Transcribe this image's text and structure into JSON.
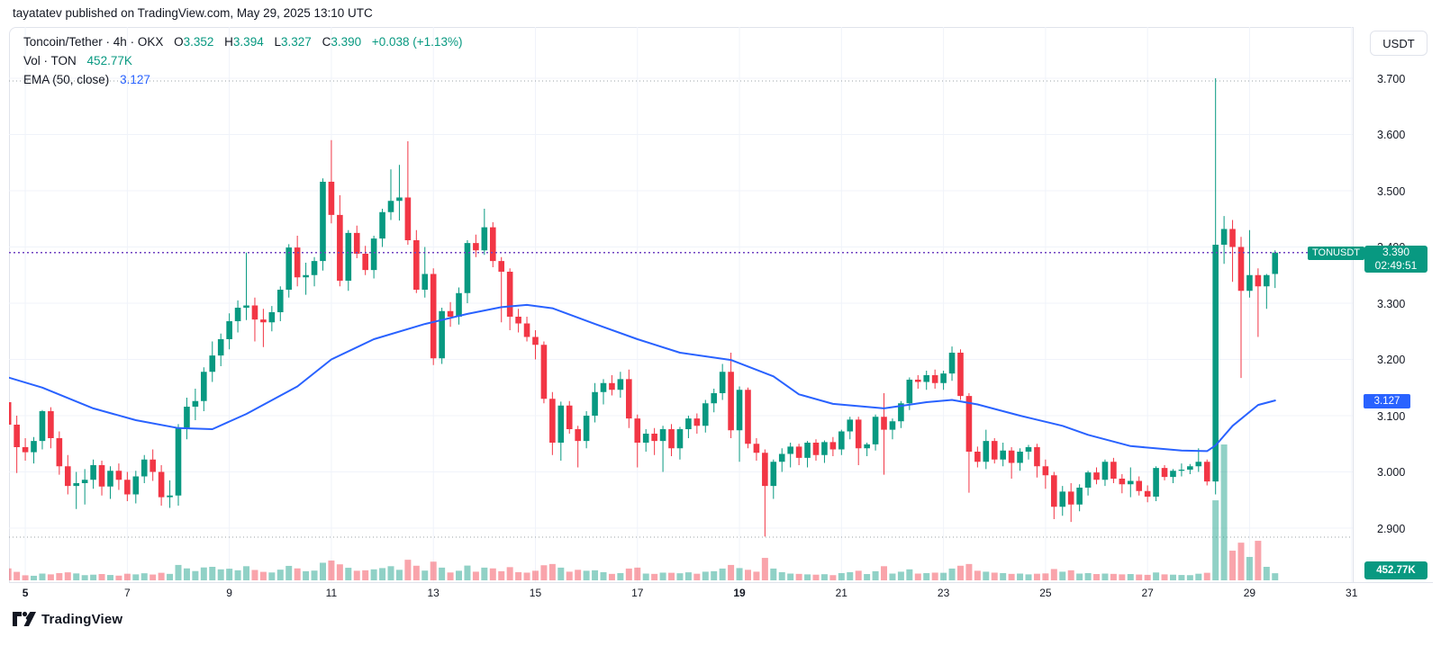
{
  "publish_line": "tayatatev published on TradingView.com, May 29, 2025 13:10 UTC",
  "legend": {
    "row1": {
      "title": "Toncoin/Tether · 4h · OKX",
      "o_label": "O",
      "o": "3.352",
      "h_label": "H",
      "h": "3.394",
      "l_label": "L",
      "l": "3.327",
      "c_label": "C",
      "c": "3.390",
      "change": "+0.038 (+1.13%)"
    },
    "row2": {
      "label": "Vol · TON",
      "value": "452.77K"
    },
    "row3": {
      "label": "EMA (50, close)",
      "value": "3.127"
    }
  },
  "labels": {
    "symbol_tag": "TONUSDT",
    "last_price": "3.390",
    "countdown": "02:49:51",
    "ema_value": "3.127",
    "volume_value": "452.77K",
    "currency_button": "USDT"
  },
  "footer": {
    "brand": "TradingView"
  },
  "colors": {
    "up": "#089981",
    "down": "#f23645",
    "vol_up": "rgba(8,153,129,0.45)",
    "vol_down": "rgba(242,54,69,0.45)",
    "ema": "#2962ff",
    "price_line": "#6f42c1",
    "grid": "#f0f3fa",
    "range_dotted": "#9aa0a6",
    "axis_text": "#131722",
    "border": "#e0e3eb"
  },
  "chart_data": {
    "type": "candlestick",
    "symbol": "TONUSDT",
    "pair": "Toncoin/Tether",
    "exchange": "OKX",
    "interval": "4h",
    "legend_note": "values are [open, high, low, close, volume_K_TON], 4h candles May 4 16:00 - May 29 12:00 UTC",
    "price_axis": {
      "ticks": [
        "3.700",
        "3.600",
        "3.500",
        "3.400",
        "3.300",
        "3.200",
        "3.100",
        "3.000",
        "2.900"
      ],
      "min": 2.9,
      "max": 3.7
    },
    "time_axis": {
      "ticks": [
        {
          "label": "5",
          "bold": true
        },
        {
          "label": "7",
          "bold": false
        },
        {
          "label": "9",
          "bold": false
        },
        {
          "label": "11",
          "bold": false
        },
        {
          "label": "13",
          "bold": false
        },
        {
          "label": "15",
          "bold": false
        },
        {
          "label": "17",
          "bold": false
        },
        {
          "label": "19",
          "bold": true
        },
        {
          "label": "21",
          "bold": false
        },
        {
          "label": "23",
          "bold": false
        },
        {
          "label": "25",
          "bold": false
        },
        {
          "label": "27",
          "bold": false
        },
        {
          "label": "29",
          "bold": false
        },
        {
          "label": "31",
          "bold": false
        }
      ]
    },
    "range_high_line": 3.7,
    "range_low_line": 2.884,
    "current_price_line": 3.39,
    "candles": [
      [
        3.124,
        3.216,
        3.055,
        3.084,
        760
      ],
      [
        3.084,
        3.1,
        2.998,
        3.044,
        540
      ],
      [
        3.044,
        3.06,
        3.02,
        3.035,
        320
      ],
      [
        3.035,
        3.062,
        3.015,
        3.055,
        290
      ],
      [
        3.055,
        3.11,
        3.04,
        3.108,
        430
      ],
      [
        3.108,
        3.115,
        3.042,
        3.06,
        380
      ],
      [
        3.06,
        3.072,
        2.995,
        3.01,
        460
      ],
      [
        3.01,
        3.03,
        2.96,
        2.975,
        510
      ],
      [
        2.975,
        3.0,
        2.934,
        2.98,
        440
      ],
      [
        2.98,
        3.005,
        2.942,
        2.986,
        330
      ],
      [
        2.986,
        3.022,
        2.97,
        3.012,
        360
      ],
      [
        3.012,
        3.02,
        2.958,
        2.974,
        400
      ],
      [
        2.974,
        3.01,
        2.952,
        3.002,
        340
      ],
      [
        3.002,
        3.015,
        2.968,
        2.986,
        300
      ],
      [
        2.986,
        3.0,
        2.948,
        2.96,
        420
      ],
      [
        2.96,
        3.002,
        2.944,
        2.992,
        380
      ],
      [
        2.992,
        3.03,
        2.98,
        3.022,
        450
      ],
      [
        3.022,
        3.04,
        2.984,
        3.0,
        370
      ],
      [
        3.0,
        3.012,
        2.94,
        2.955,
        480
      ],
      [
        2.955,
        2.985,
        2.936,
        2.958,
        410
      ],
      [
        2.958,
        3.085,
        2.94,
        3.078,
        980
      ],
      [
        3.078,
        3.132,
        3.058,
        3.116,
        760
      ],
      [
        3.116,
        3.148,
        3.092,
        3.126,
        590
      ],
      [
        3.126,
        3.186,
        3.108,
        3.178,
        820
      ],
      [
        3.178,
        3.232,
        3.16,
        3.207,
        860
      ],
      [
        3.207,
        3.246,
        3.188,
        3.236,
        700
      ],
      [
        3.236,
        3.282,
        3.218,
        3.268,
        740
      ],
      [
        3.268,
        3.305,
        3.248,
        3.292,
        640
      ],
      [
        3.292,
        3.39,
        3.27,
        3.296,
        900
      ],
      [
        3.296,
        3.31,
        3.232,
        3.271,
        660
      ],
      [
        3.271,
        3.29,
        3.222,
        3.266,
        540
      ],
      [
        3.266,
        3.295,
        3.25,
        3.284,
        500
      ],
      [
        3.284,
        3.33,
        3.268,
        3.324,
        680
      ],
      [
        3.324,
        3.405,
        3.31,
        3.399,
        920
      ],
      [
        3.399,
        3.42,
        3.33,
        3.346,
        760
      ],
      [
        3.346,
        3.372,
        3.315,
        3.35,
        580
      ],
      [
        3.35,
        3.382,
        3.33,
        3.375,
        620
      ],
      [
        3.375,
        3.522,
        3.358,
        3.516,
        1120
      ],
      [
        3.516,
        3.59,
        3.442,
        3.457,
        1260
      ],
      [
        3.457,
        3.492,
        3.33,
        3.34,
        1020
      ],
      [
        3.34,
        3.43,
        3.322,
        3.425,
        800
      ],
      [
        3.425,
        3.438,
        3.38,
        3.388,
        610
      ],
      [
        3.388,
        3.402,
        3.35,
        3.359,
        640
      ],
      [
        3.359,
        3.42,
        3.344,
        3.415,
        700
      ],
      [
        3.415,
        3.468,
        3.4,
        3.462,
        780
      ],
      [
        3.462,
        3.538,
        3.448,
        3.482,
        900
      ],
      [
        3.482,
        3.546,
        3.447,
        3.488,
        670
      ],
      [
        3.488,
        3.588,
        3.404,
        3.412,
        1310
      ],
      [
        3.412,
        3.43,
        3.318,
        3.324,
        930
      ],
      [
        3.324,
        3.4,
        3.31,
        3.352,
        620
      ],
      [
        3.352,
        3.362,
        3.19,
        3.202,
        1190
      ],
      [
        3.202,
        3.292,
        3.192,
        3.286,
        810
      ],
      [
        3.286,
        3.302,
        3.258,
        3.276,
        500
      ],
      [
        3.276,
        3.328,
        3.262,
        3.318,
        610
      ],
      [
        3.318,
        3.412,
        3.3,
        3.407,
        940
      ],
      [
        3.407,
        3.422,
        3.382,
        3.394,
        550
      ],
      [
        3.394,
        3.468,
        3.386,
        3.435,
        810
      ],
      [
        3.435,
        3.444,
        3.364,
        3.375,
        760
      ],
      [
        3.375,
        3.382,
        3.266,
        3.356,
        580
      ],
      [
        3.356,
        3.362,
        3.252,
        3.276,
        840
      ],
      [
        3.276,
        3.29,
        3.248,
        3.264,
        520
      ],
      [
        3.264,
        3.276,
        3.232,
        3.24,
        490
      ],
      [
        3.24,
        3.252,
        3.2,
        3.226,
        610
      ],
      [
        3.226,
        3.232,
        3.122,
        3.13,
        960
      ],
      [
        3.13,
        3.142,
        3.03,
        3.052,
        1040
      ],
      [
        3.052,
        3.125,
        3.02,
        3.118,
        810
      ],
      [
        3.118,
        3.126,
        3.068,
        3.076,
        550
      ],
      [
        3.076,
        3.082,
        3.008,
        3.055,
        670
      ],
      [
        3.055,
        3.108,
        3.042,
        3.1,
        610
      ],
      [
        3.1,
        3.158,
        3.088,
        3.142,
        640
      ],
      [
        3.142,
        3.165,
        3.12,
        3.158,
        520
      ],
      [
        3.158,
        3.172,
        3.136,
        3.146,
        410
      ],
      [
        3.146,
        3.178,
        3.132,
        3.165,
        460
      ],
      [
        3.165,
        3.182,
        3.078,
        3.095,
        750
      ],
      [
        3.095,
        3.102,
        3.008,
        3.052,
        810
      ],
      [
        3.052,
        3.076,
        3.036,
        3.068,
        430
      ],
      [
        3.068,
        3.078,
        3.03,
        3.055,
        410
      ],
      [
        3.055,
        3.082,
        3.0,
        3.076,
        490
      ],
      [
        3.076,
        3.085,
        3.028,
        3.042,
        480
      ],
      [
        3.042,
        3.08,
        3.022,
        3.076,
        450
      ],
      [
        3.076,
        3.1,
        3.06,
        3.095,
        510
      ],
      [
        3.095,
        3.104,
        3.068,
        3.082,
        420
      ],
      [
        3.082,
        3.128,
        3.07,
        3.122,
        550
      ],
      [
        3.122,
        3.148,
        3.106,
        3.14,
        580
      ],
      [
        3.14,
        3.192,
        3.128,
        3.178,
        750
      ],
      [
        3.178,
        3.212,
        3.06,
        3.074,
        980
      ],
      [
        3.074,
        3.152,
        3.018,
        3.146,
        780
      ],
      [
        3.146,
        3.15,
        3.042,
        3.05,
        670
      ],
      [
        3.05,
        3.06,
        3.02,
        3.034,
        550
      ],
      [
        3.034,
        3.04,
        2.885,
        2.975,
        1430
      ],
      [
        2.975,
        3.022,
        2.952,
        3.018,
        750
      ],
      [
        3.018,
        3.042,
        3.0,
        3.032,
        520
      ],
      [
        3.032,
        3.052,
        3.008,
        3.045,
        430
      ],
      [
        3.045,
        3.05,
        3.012,
        3.025,
        410
      ],
      [
        3.025,
        3.055,
        3.008,
        3.052,
        380
      ],
      [
        3.052,
        3.058,
        3.02,
        3.03,
        360
      ],
      [
        3.03,
        3.056,
        3.016,
        3.053,
        390
      ],
      [
        3.053,
        3.062,
        3.028,
        3.04,
        330
      ],
      [
        3.04,
        3.075,
        3.03,
        3.072,
        460
      ],
      [
        3.072,
        3.098,
        3.058,
        3.093,
        520
      ],
      [
        3.093,
        3.098,
        3.012,
        3.042,
        610
      ],
      [
        3.042,
        3.052,
        3.028,
        3.049,
        400
      ],
      [
        3.049,
        3.102,
        3.038,
        3.098,
        580
      ],
      [
        3.098,
        3.14,
        2.995,
        3.075,
        900
      ],
      [
        3.075,
        3.095,
        3.058,
        3.09,
        430
      ],
      [
        3.09,
        3.126,
        3.078,
        3.122,
        550
      ],
      [
        3.122,
        3.168,
        3.11,
        3.164,
        700
      ],
      [
        3.164,
        3.172,
        3.148,
        3.16,
        430
      ],
      [
        3.16,
        3.18,
        3.146,
        3.172,
        460
      ],
      [
        3.172,
        3.182,
        3.148,
        3.158,
        490
      ],
      [
        3.158,
        3.18,
        3.146,
        3.175,
        480
      ],
      [
        3.175,
        3.223,
        3.162,
        3.212,
        750
      ],
      [
        3.212,
        3.218,
        3.128,
        3.135,
        930
      ],
      [
        3.135,
        3.14,
        2.963,
        3.036,
        1040
      ],
      [
        3.036,
        3.045,
        3.008,
        3.018,
        610
      ],
      [
        3.018,
        3.075,
        3.005,
        3.055,
        550
      ],
      [
        3.055,
        3.06,
        3.015,
        3.022,
        490
      ],
      [
        3.022,
        3.052,
        3.01,
        3.038,
        460
      ],
      [
        3.038,
        3.044,
        2.988,
        3.016,
        410
      ],
      [
        3.016,
        3.042,
        3.002,
        3.036,
        430
      ],
      [
        3.036,
        3.048,
        3.022,
        3.044,
        380
      ],
      [
        3.044,
        3.05,
        2.99,
        3.01,
        420
      ],
      [
        3.01,
        3.022,
        2.97,
        2.994,
        440
      ],
      [
        2.994,
        3.0,
        2.916,
        2.938,
        720
      ],
      [
        2.938,
        2.975,
        2.922,
        2.965,
        550
      ],
      [
        2.965,
        2.98,
        2.911,
        2.942,
        640
      ],
      [
        2.942,
        2.978,
        2.93,
        2.972,
        430
      ],
      [
        2.972,
        3.002,
        2.958,
        2.999,
        460
      ],
      [
        2.999,
        3.008,
        2.978,
        2.986,
        400
      ],
      [
        2.986,
        3.022,
        2.975,
        3.018,
        430
      ],
      [
        3.018,
        3.025,
        2.98,
        2.988,
        410
      ],
      [
        2.988,
        2.996,
        2.962,
        2.978,
        380
      ],
      [
        2.978,
        3.008,
        2.955,
        2.984,
        400
      ],
      [
        2.984,
        2.992,
        2.958,
        2.966,
        370
      ],
      [
        2.966,
        2.976,
        2.946,
        2.956,
        350
      ],
      [
        2.956,
        3.01,
        2.948,
        3.007,
        500
      ],
      [
        3.007,
        3.012,
        2.985,
        2.991,
        380
      ],
      [
        2.991,
        3.005,
        2.98,
        3.002,
        360
      ],
      [
        3.002,
        3.015,
        2.992,
        3.004,
        340
      ],
      [
        3.004,
        3.014,
        2.996,
        3.01,
        330
      ],
      [
        3.01,
        3.042,
        3.0,
        3.018,
        420
      ],
      [
        3.018,
        3.022,
        2.976,
        2.983,
        480
      ],
      [
        2.983,
        3.7,
        2.96,
        3.404,
        5100
      ],
      [
        3.404,
        3.455,
        3.37,
        3.432,
        8660
      ],
      [
        3.432,
        3.448,
        3.338,
        3.4,
        1890
      ],
      [
        3.4,
        3.418,
        3.167,
        3.322,
        2400
      ],
      [
        3.322,
        3.43,
        3.31,
        3.35,
        1490
      ],
      [
        3.35,
        3.362,
        3.24,
        3.33,
        2520
      ],
      [
        3.33,
        3.352,
        3.29,
        3.35,
        860
      ],
      [
        3.352,
        3.394,
        3.327,
        3.39,
        452.77
      ]
    ],
    "ema_points": [
      [
        0,
        3.168
      ],
      [
        4,
        3.15
      ],
      [
        10,
        3.113
      ],
      [
        15,
        3.092
      ],
      [
        20,
        3.078
      ],
      [
        24,
        3.076
      ],
      [
        28,
        3.103
      ],
      [
        34,
        3.152
      ],
      [
        38,
        3.2
      ],
      [
        43,
        3.236
      ],
      [
        49,
        3.263
      ],
      [
        54,
        3.281
      ],
      [
        58,
        3.293
      ],
      [
        61,
        3.297
      ],
      [
        64,
        3.291
      ],
      [
        69,
        3.263
      ],
      [
        74,
        3.236
      ],
      [
        79,
        3.212
      ],
      [
        85,
        3.199
      ],
      [
        90,
        3.17
      ],
      [
        93,
        3.138
      ],
      [
        97,
        3.121
      ],
      [
        103,
        3.113
      ],
      [
        108,
        3.124
      ],
      [
        111,
        3.128
      ],
      [
        114,
        3.12
      ],
      [
        119,
        3.1
      ],
      [
        124,
        3.082
      ],
      [
        127,
        3.066
      ],
      [
        132,
        3.046
      ],
      [
        138,
        3.038
      ],
      [
        141,
        3.037
      ],
      [
        142,
        3.047
      ],
      [
        144,
        3.082
      ],
      [
        147,
        3.119
      ],
      [
        149,
        3.127
      ]
    ]
  }
}
